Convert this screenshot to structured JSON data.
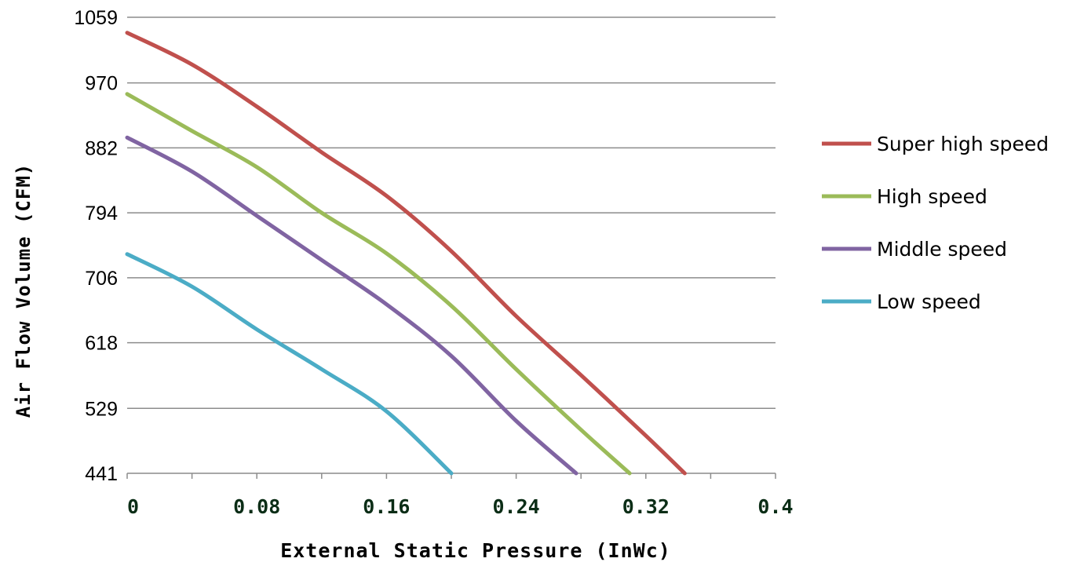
{
  "chart_data": {
    "type": "line",
    "title": "",
    "xlabel": "External Static Pressure (InWc)",
    "ylabel": "Air Flow Volume (CFM)",
    "xlim": [
      0,
      0.4
    ],
    "ylim": [
      441,
      1059
    ],
    "xticks": [
      "0",
      "0.08",
      "0.16",
      "0.24",
      "0.32",
      "0.4"
    ],
    "yticks": [
      "441",
      "529",
      "618",
      "706",
      "794",
      "882",
      "970",
      "1059"
    ],
    "grid": "horizontal",
    "legend_position": "right",
    "series": [
      {
        "name": "Super high speed",
        "color": "#c0504d",
        "x": [
          0,
          0.04,
          0.08,
          0.12,
          0.16,
          0.2,
          0.24,
          0.28,
          0.32,
          0.344
        ],
        "y": [
          1038,
          995,
          938,
          876,
          817,
          742,
          654,
          574,
          492,
          441
        ]
      },
      {
        "name": "High speed",
        "color": "#9bbb59",
        "x": [
          0,
          0.04,
          0.08,
          0.12,
          0.16,
          0.2,
          0.24,
          0.28,
          0.31
        ],
        "y": [
          955,
          905,
          856,
          794,
          739,
          668,
          582,
          500,
          441
        ]
      },
      {
        "name": "Middle speed",
        "color": "#8064a2",
        "x": [
          0,
          0.04,
          0.08,
          0.12,
          0.16,
          0.2,
          0.24,
          0.277
        ],
        "y": [
          896,
          850,
          790,
          730,
          670,
          600,
          512,
          441
        ]
      },
      {
        "name": "Low speed",
        "color": "#4bacc6",
        "x": [
          0,
          0.04,
          0.08,
          0.12,
          0.16,
          0.2
        ],
        "y": [
          738,
          694,
          636,
          582,
          525,
          441
        ]
      }
    ]
  }
}
